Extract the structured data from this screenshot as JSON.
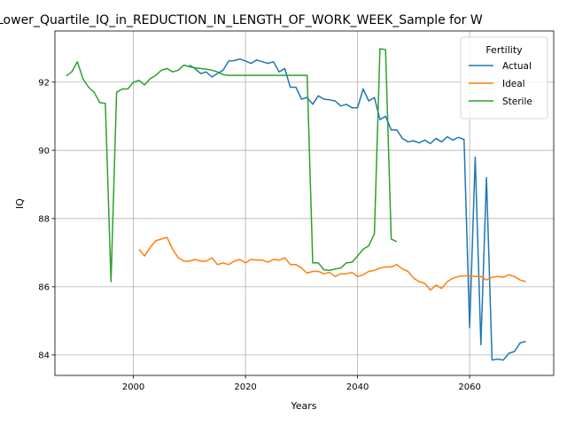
{
  "chart_data": {
    "type": "line",
    "title": "Lower_Quartile_IQ_in_REDUCTION_IN_LENGTH_OF_WORK_WEEK_Sample for W",
    "xlabel": "Years",
    "ylabel": "IQ",
    "xlim": [
      1986,
      2075
    ],
    "ylim": [
      83.4,
      93.5
    ],
    "xticks": [
      2000,
      2020,
      2040,
      2060
    ],
    "yticks": [
      84,
      86,
      88,
      90,
      92
    ],
    "grid": true,
    "legend": {
      "title": "Fertility",
      "placement": "top-right"
    },
    "series": [
      {
        "name": "Actual",
        "color": "#1f77b4",
        "x": [
          2010,
          2011,
          2012,
          2013,
          2014,
          2015,
          2016,
          2017,
          2018,
          2019,
          2020,
          2021,
          2022,
          2023,
          2024,
          2025,
          2026,
          2027,
          2028,
          2029,
          2030,
          2031,
          2032,
          2033,
          2034,
          2035,
          2036,
          2037,
          2038,
          2039,
          2040,
          2041,
          2042,
          2043,
          2044,
          2045,
          2046,
          2047,
          2048,
          2049,
          2050,
          2051,
          2052,
          2053,
          2054,
          2055,
          2056,
          2057,
          2058,
          2059,
          2060,
          2061,
          2062,
          2063,
          2064,
          2065,
          2066,
          2067,
          2068,
          2069,
          2070
        ],
        "values": [
          92.5,
          92.4,
          92.25,
          92.3,
          92.15,
          92.25,
          92.35,
          92.62,
          92.63,
          92.68,
          92.62,
          92.55,
          92.65,
          92.6,
          92.55,
          92.6,
          92.3,
          92.4,
          91.85,
          91.85,
          91.5,
          91.55,
          91.35,
          91.6,
          91.5,
          91.48,
          91.45,
          91.3,
          91.35,
          91.25,
          91.25,
          91.8,
          91.45,
          91.55,
          90.9,
          91.0,
          90.6,
          90.6,
          90.35,
          90.25,
          90.28,
          90.22,
          90.3,
          90.2,
          90.35,
          90.25,
          90.4,
          90.3,
          90.38,
          90.32,
          84.8,
          89.8,
          84.3,
          89.2,
          83.85,
          83.88,
          83.85,
          84.05,
          84.1,
          84.35,
          84.4
        ]
      },
      {
        "name": "Ideal",
        "color": "#ff7f0e",
        "x": [
          2001,
          2002,
          2003,
          2004,
          2005,
          2006,
          2007,
          2008,
          2009,
          2010,
          2011,
          2012,
          2013,
          2014,
          2015,
          2016,
          2017,
          2018,
          2019,
          2020,
          2021,
          2022,
          2023,
          2024,
          2025,
          2026,
          2027,
          2028,
          2029,
          2030,
          2031,
          2032,
          2033,
          2034,
          2035,
          2036,
          2037,
          2038,
          2039,
          2040,
          2041,
          2042,
          2043,
          2044,
          2045,
          2046,
          2047,
          2048,
          2049,
          2050,
          2051,
          2052,
          2053,
          2054,
          2055,
          2056,
          2057,
          2058,
          2059,
          2060,
          2061,
          2062,
          2063,
          2064,
          2065,
          2066,
          2067,
          2068,
          2069,
          2070
        ],
        "values": [
          87.1,
          86.9,
          87.15,
          87.35,
          87.4,
          87.45,
          87.1,
          86.85,
          86.75,
          86.75,
          86.8,
          86.75,
          86.75,
          86.85,
          86.65,
          86.7,
          86.65,
          86.75,
          86.8,
          86.7,
          86.8,
          86.78,
          86.78,
          86.72,
          86.8,
          86.78,
          86.85,
          86.65,
          86.65,
          86.55,
          86.4,
          86.45,
          86.45,
          86.38,
          86.42,
          86.3,
          86.38,
          86.38,
          86.42,
          86.3,
          86.35,
          86.45,
          86.48,
          86.55,
          86.58,
          86.58,
          86.65,
          86.52,
          86.45,
          86.25,
          86.15,
          86.1,
          85.9,
          86.05,
          85.95,
          86.15,
          86.25,
          86.3,
          86.32,
          86.32,
          86.3,
          86.3,
          86.2,
          86.28,
          86.3,
          86.28,
          86.35,
          86.3,
          86.2,
          86.15
        ]
      },
      {
        "name": "Sterile",
        "color": "#2ca02c",
        "x": [
          1988,
          1989,
          1990,
          1991,
          1992,
          1993,
          1994,
          1995,
          1996,
          1997,
          1998,
          1999,
          2000,
          2001,
          2002,
          2003,
          2004,
          2005,
          2006,
          2007,
          2008,
          2009,
          2010,
          2011,
          2012,
          2013,
          2014,
          2015,
          2016,
          2017,
          2018,
          2019,
          2020,
          2021,
          2022,
          2023,
          2024,
          2025,
          2026,
          2027,
          2028,
          2029,
          2030,
          2031,
          2032,
          2033,
          2034,
          2035,
          2036,
          2037,
          2038,
          2039,
          2040,
          2041,
          2042,
          2043,
          2044,
          2045,
          2046,
          2047
        ],
        "values": [
          92.18,
          92.3,
          92.6,
          92.1,
          91.85,
          91.7,
          91.4,
          91.38,
          86.15,
          91.7,
          91.8,
          91.8,
          92.0,
          92.05,
          91.92,
          92.1,
          92.2,
          92.35,
          92.4,
          92.3,
          92.35,
          92.5,
          92.45,
          92.42,
          92.4,
          92.38,
          92.35,
          92.3,
          92.22,
          92.2,
          92.2,
          92.2,
          92.2,
          92.2,
          92.2,
          92.2,
          92.2,
          92.2,
          92.2,
          92.2,
          92.2,
          92.2,
          92.2,
          92.2,
          86.7,
          86.7,
          86.5,
          86.48,
          86.52,
          86.55,
          86.7,
          86.72,
          86.9,
          87.1,
          87.2,
          87.55,
          92.98,
          92.95,
          87.4,
          87.32
        ]
      }
    ]
  }
}
